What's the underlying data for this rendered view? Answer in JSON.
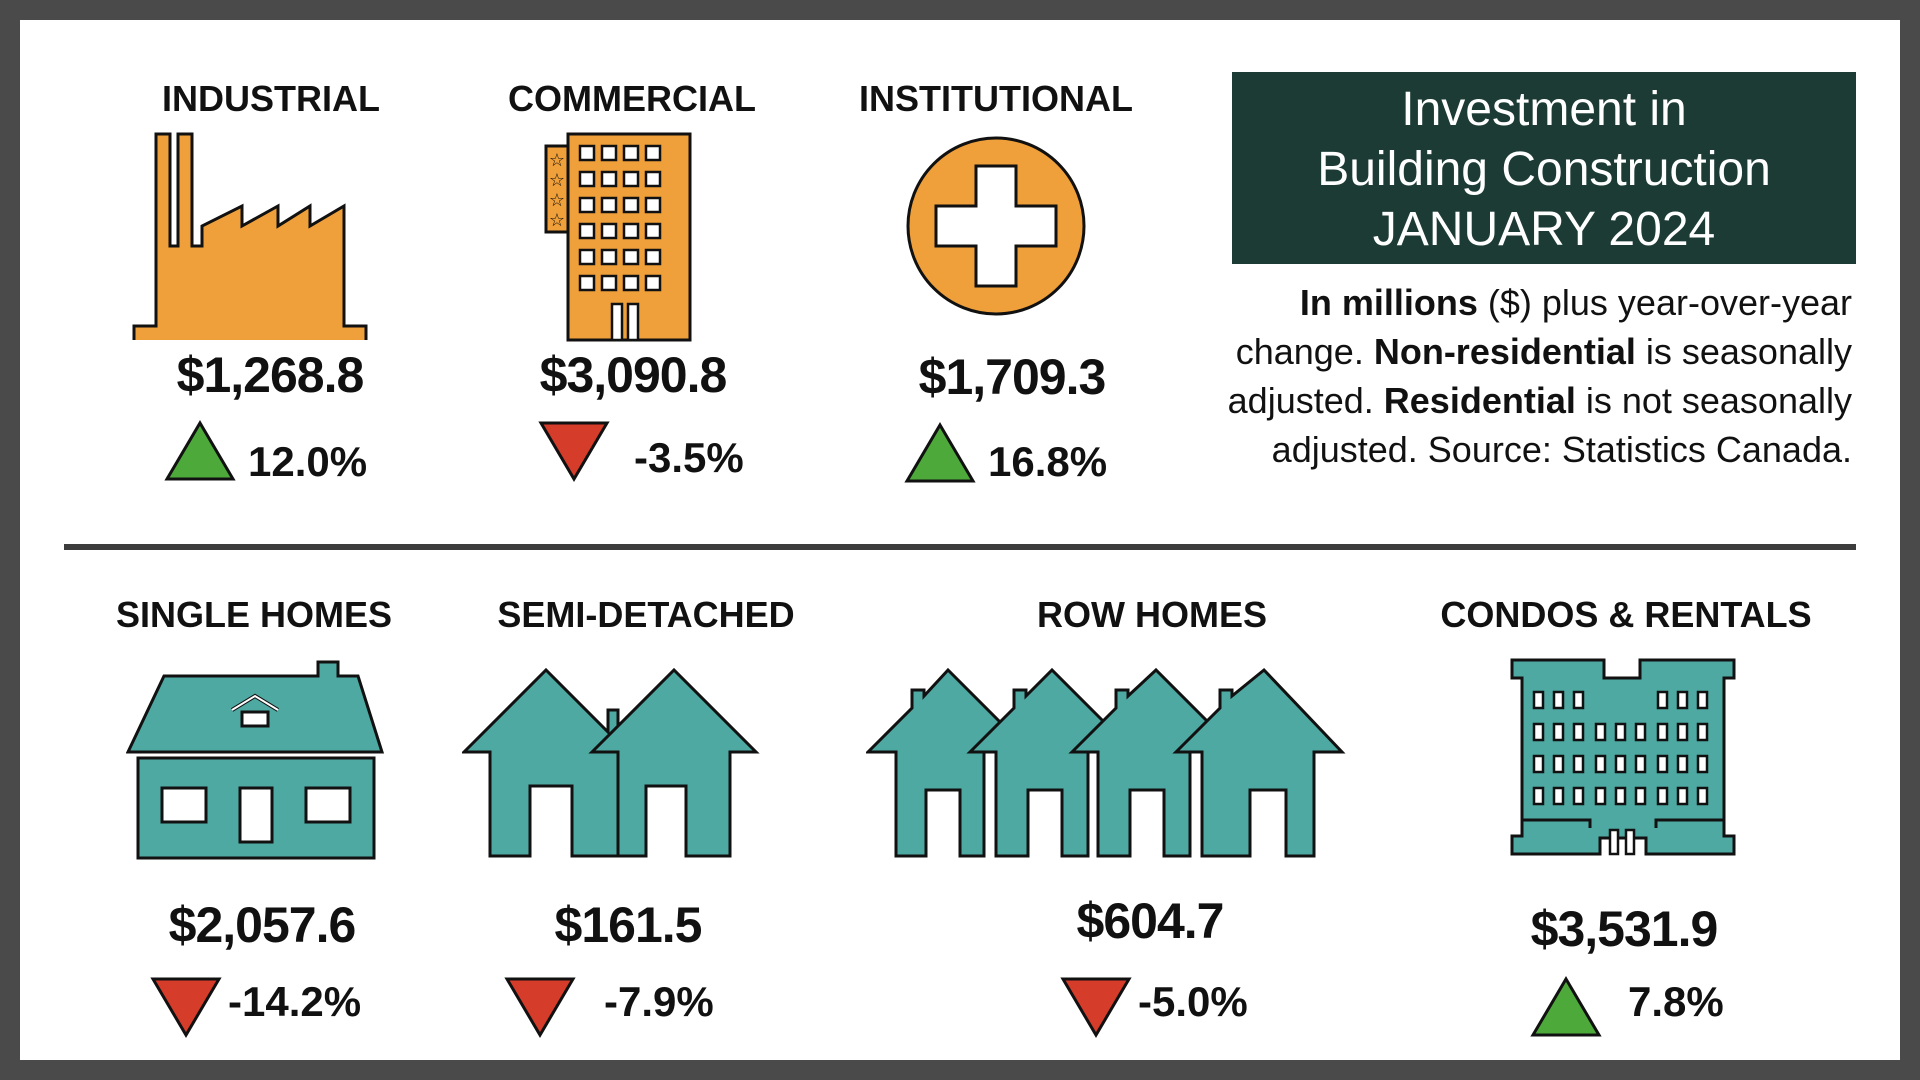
{
  "title": {
    "line1": "Investment in",
    "line2": "Building Construction",
    "line3": "JANUARY 2024"
  },
  "note": {
    "bold1": "In millions",
    "text1": " ($) plus year-over-year change. ",
    "bold2": "Non-residential",
    "text2": " is seasonally adjusted. ",
    "bold3": "Residential",
    "text3": " is not seasonally adjusted. Source: Statistics Canada."
  },
  "categories": [
    {
      "label": "INDUSTRIAL",
      "amount": "$1,268.8",
      "change": "12.0%",
      "direction": "up",
      "icon": "factory-icon"
    },
    {
      "label": "COMMERCIAL",
      "amount": "$3,090.8",
      "change": "-3.5%",
      "direction": "down",
      "icon": "office-building-icon"
    },
    {
      "label": "INSTITUTIONAL",
      "amount": "$1,709.3",
      "change": "16.8%",
      "direction": "up",
      "icon": "medical-cross-icon"
    },
    {
      "label": "SINGLE HOMES",
      "amount": "$2,057.6",
      "change": "-14.2%",
      "direction": "down",
      "icon": "single-home-icon"
    },
    {
      "label": "SEMI-DETACHED",
      "amount": "$161.5",
      "change": "-7.9%",
      "direction": "down",
      "icon": "semi-detached-icon"
    },
    {
      "label": "ROW HOMES",
      "amount": "$604.7",
      "change": "-5.0%",
      "direction": "down",
      "icon": "row-homes-icon"
    },
    {
      "label": "CONDOS & RENTALS",
      "amount": "$3,531.9",
      "change": "7.8%",
      "direction": "up",
      "icon": "apartment-building-icon"
    }
  ],
  "colors": {
    "non_residential": "#f0a03a",
    "residential": "#4ea9a2",
    "up": "#4daa3a",
    "down": "#d63c2a",
    "title_bg": "#1c3b35"
  }
}
